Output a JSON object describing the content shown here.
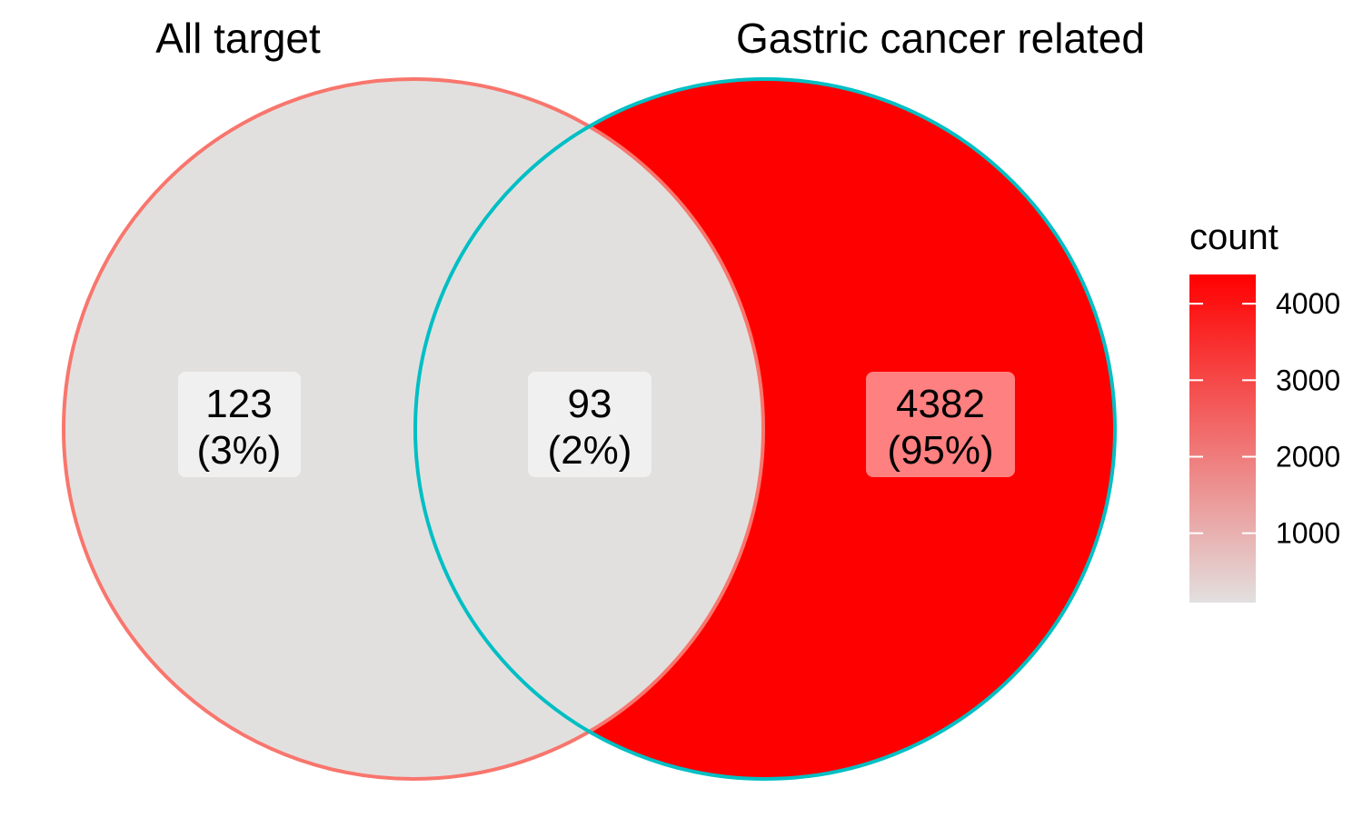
{
  "sets": [
    {
      "name": "All target",
      "stroke": "#F8766D"
    },
    {
      "name": "Gastric cancer related",
      "stroke": "#00BFC4"
    }
  ],
  "regions": [
    {
      "id": "all-target-only",
      "count": "123",
      "percent": "(3%)",
      "fill": "#E2E0DF",
      "label_bg": "#F1F0F0"
    },
    {
      "id": "intersection",
      "count": "93",
      "percent": "(2%)",
      "fill": "#E2E0DF",
      "label_bg": "#F1F0F0"
    },
    {
      "id": "gastric-only",
      "count": "4382",
      "percent": "(95%)",
      "fill": "#FF0000",
      "label_bg": "#FF8080"
    }
  ],
  "legend": {
    "title": "count",
    "ticks": [
      "1000",
      "2000",
      "3000",
      "4000"
    ],
    "tick_values": [
      1000,
      2000,
      3000,
      4000
    ],
    "range": [
      93,
      4382
    ],
    "low_color": "#E2E0DF",
    "high_color": "#FF0000"
  }
}
